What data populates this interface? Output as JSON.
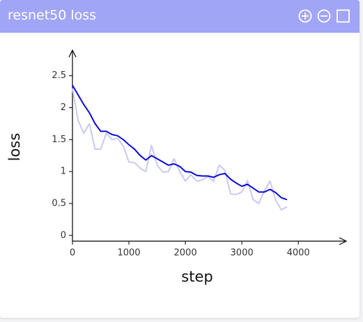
{
  "chart_data": {
    "type": "line",
    "title": "resnet50 loss",
    "xlabel": "step",
    "ylabel": "loss",
    "x": [
      0,
      100,
      200,
      300,
      400,
      500,
      600,
      700,
      800,
      900,
      1000,
      1100,
      1200,
      1300,
      1400,
      1500,
      1600,
      1700,
      1800,
      1900,
      2000,
      2100,
      2200,
      2300,
      2400,
      2500,
      2600,
      2700,
      2800,
      2900,
      3000,
      3100,
      3200,
      3300,
      3400,
      3500,
      3600,
      3700,
      3800
    ],
    "series": [
      {
        "color": "#c9c9f2",
        "values": [
          2.3,
          1.8,
          1.6,
          1.75,
          1.35,
          1.35,
          1.6,
          1.5,
          1.52,
          1.4,
          1.15,
          1.14,
          1.05,
          1.0,
          1.41,
          1.1,
          0.99,
          1.0,
          1.2,
          1.0,
          0.85,
          0.95,
          0.85,
          0.87,
          0.92,
          0.85,
          1.1,
          1.02,
          0.65,
          0.64,
          0.68,
          0.86,
          0.56,
          0.5,
          0.7,
          0.85,
          0.55,
          0.4,
          0.45
        ]
      },
      {
        "color": "#0a0ad6",
        "values": [
          2.35,
          2.2,
          2.05,
          1.92,
          1.75,
          1.63,
          1.63,
          1.58,
          1.56,
          1.5,
          1.42,
          1.35,
          1.25,
          1.18,
          1.25,
          1.2,
          1.15,
          1.1,
          1.12,
          1.08,
          1.0,
          0.99,
          0.94,
          0.93,
          0.93,
          0.91,
          0.95,
          0.97,
          0.88,
          0.82,
          0.77,
          0.8,
          0.74,
          0.68,
          0.68,
          0.72,
          0.67,
          0.59,
          0.56
        ]
      }
    ],
    "xlim": [
      0,
      4850
    ],
    "xticks": [
      0,
      1000,
      2000,
      3000,
      4000
    ],
    "ylim": [
      -0.09,
      2.9
    ],
    "yticks": [
      0,
      0.5,
      1,
      1.5,
      2,
      2.5
    ]
  }
}
